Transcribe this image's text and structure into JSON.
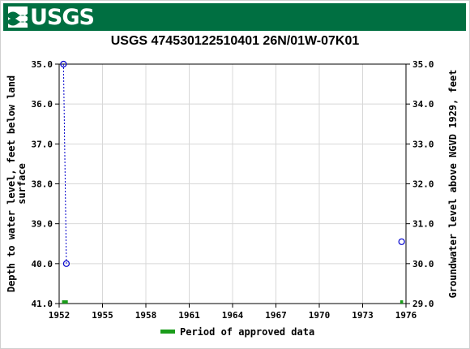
{
  "brand": {
    "logo_text": "USGS",
    "banner_color": "#006f41"
  },
  "chart_data": {
    "type": "scatter",
    "title": "USGS 474530122510401 26N/01W-07K01",
    "y_left_label": "Depth to water level, feet below land surface",
    "y_right_label": "Groundwater level above NGVD 1929, feet",
    "x_range": [
      1952,
      1976
    ],
    "x_ticks": [
      "1952",
      "1955",
      "1958",
      "1961",
      "1964",
      "1967",
      "1970",
      "1973",
      "1976"
    ],
    "y_left_range": [
      35.0,
      41.0
    ],
    "y_left_ticks": [
      "35.0",
      "36.0",
      "37.0",
      "38.0",
      "39.0",
      "40.0",
      "41.0"
    ],
    "y_right_range": [
      35.0,
      29.0
    ],
    "y_right_ticks": [
      "35.0",
      "34.0",
      "33.0",
      "32.0",
      "31.0",
      "30.0",
      "29.0"
    ],
    "grid": true,
    "series": [
      {
        "marker": "circle-open",
        "color": "#0000cc",
        "connected": true,
        "points": [
          {
            "x": 1952.3,
            "depth": 35.0
          },
          {
            "x": 1952.5,
            "depth": 40.0
          }
        ]
      },
      {
        "marker": "circle-open",
        "color": "#0000cc",
        "connected": false,
        "points": [
          {
            "x": 1975.7,
            "depth": 39.45
          }
        ]
      }
    ],
    "approved_periods": [
      [
        1952.2,
        1952.6
      ],
      [
        1975.6,
        1975.8
      ]
    ],
    "approved_color": "#1a9c1a",
    "legend": {
      "label": "Period of approved data",
      "placement": "bottom-center"
    }
  }
}
